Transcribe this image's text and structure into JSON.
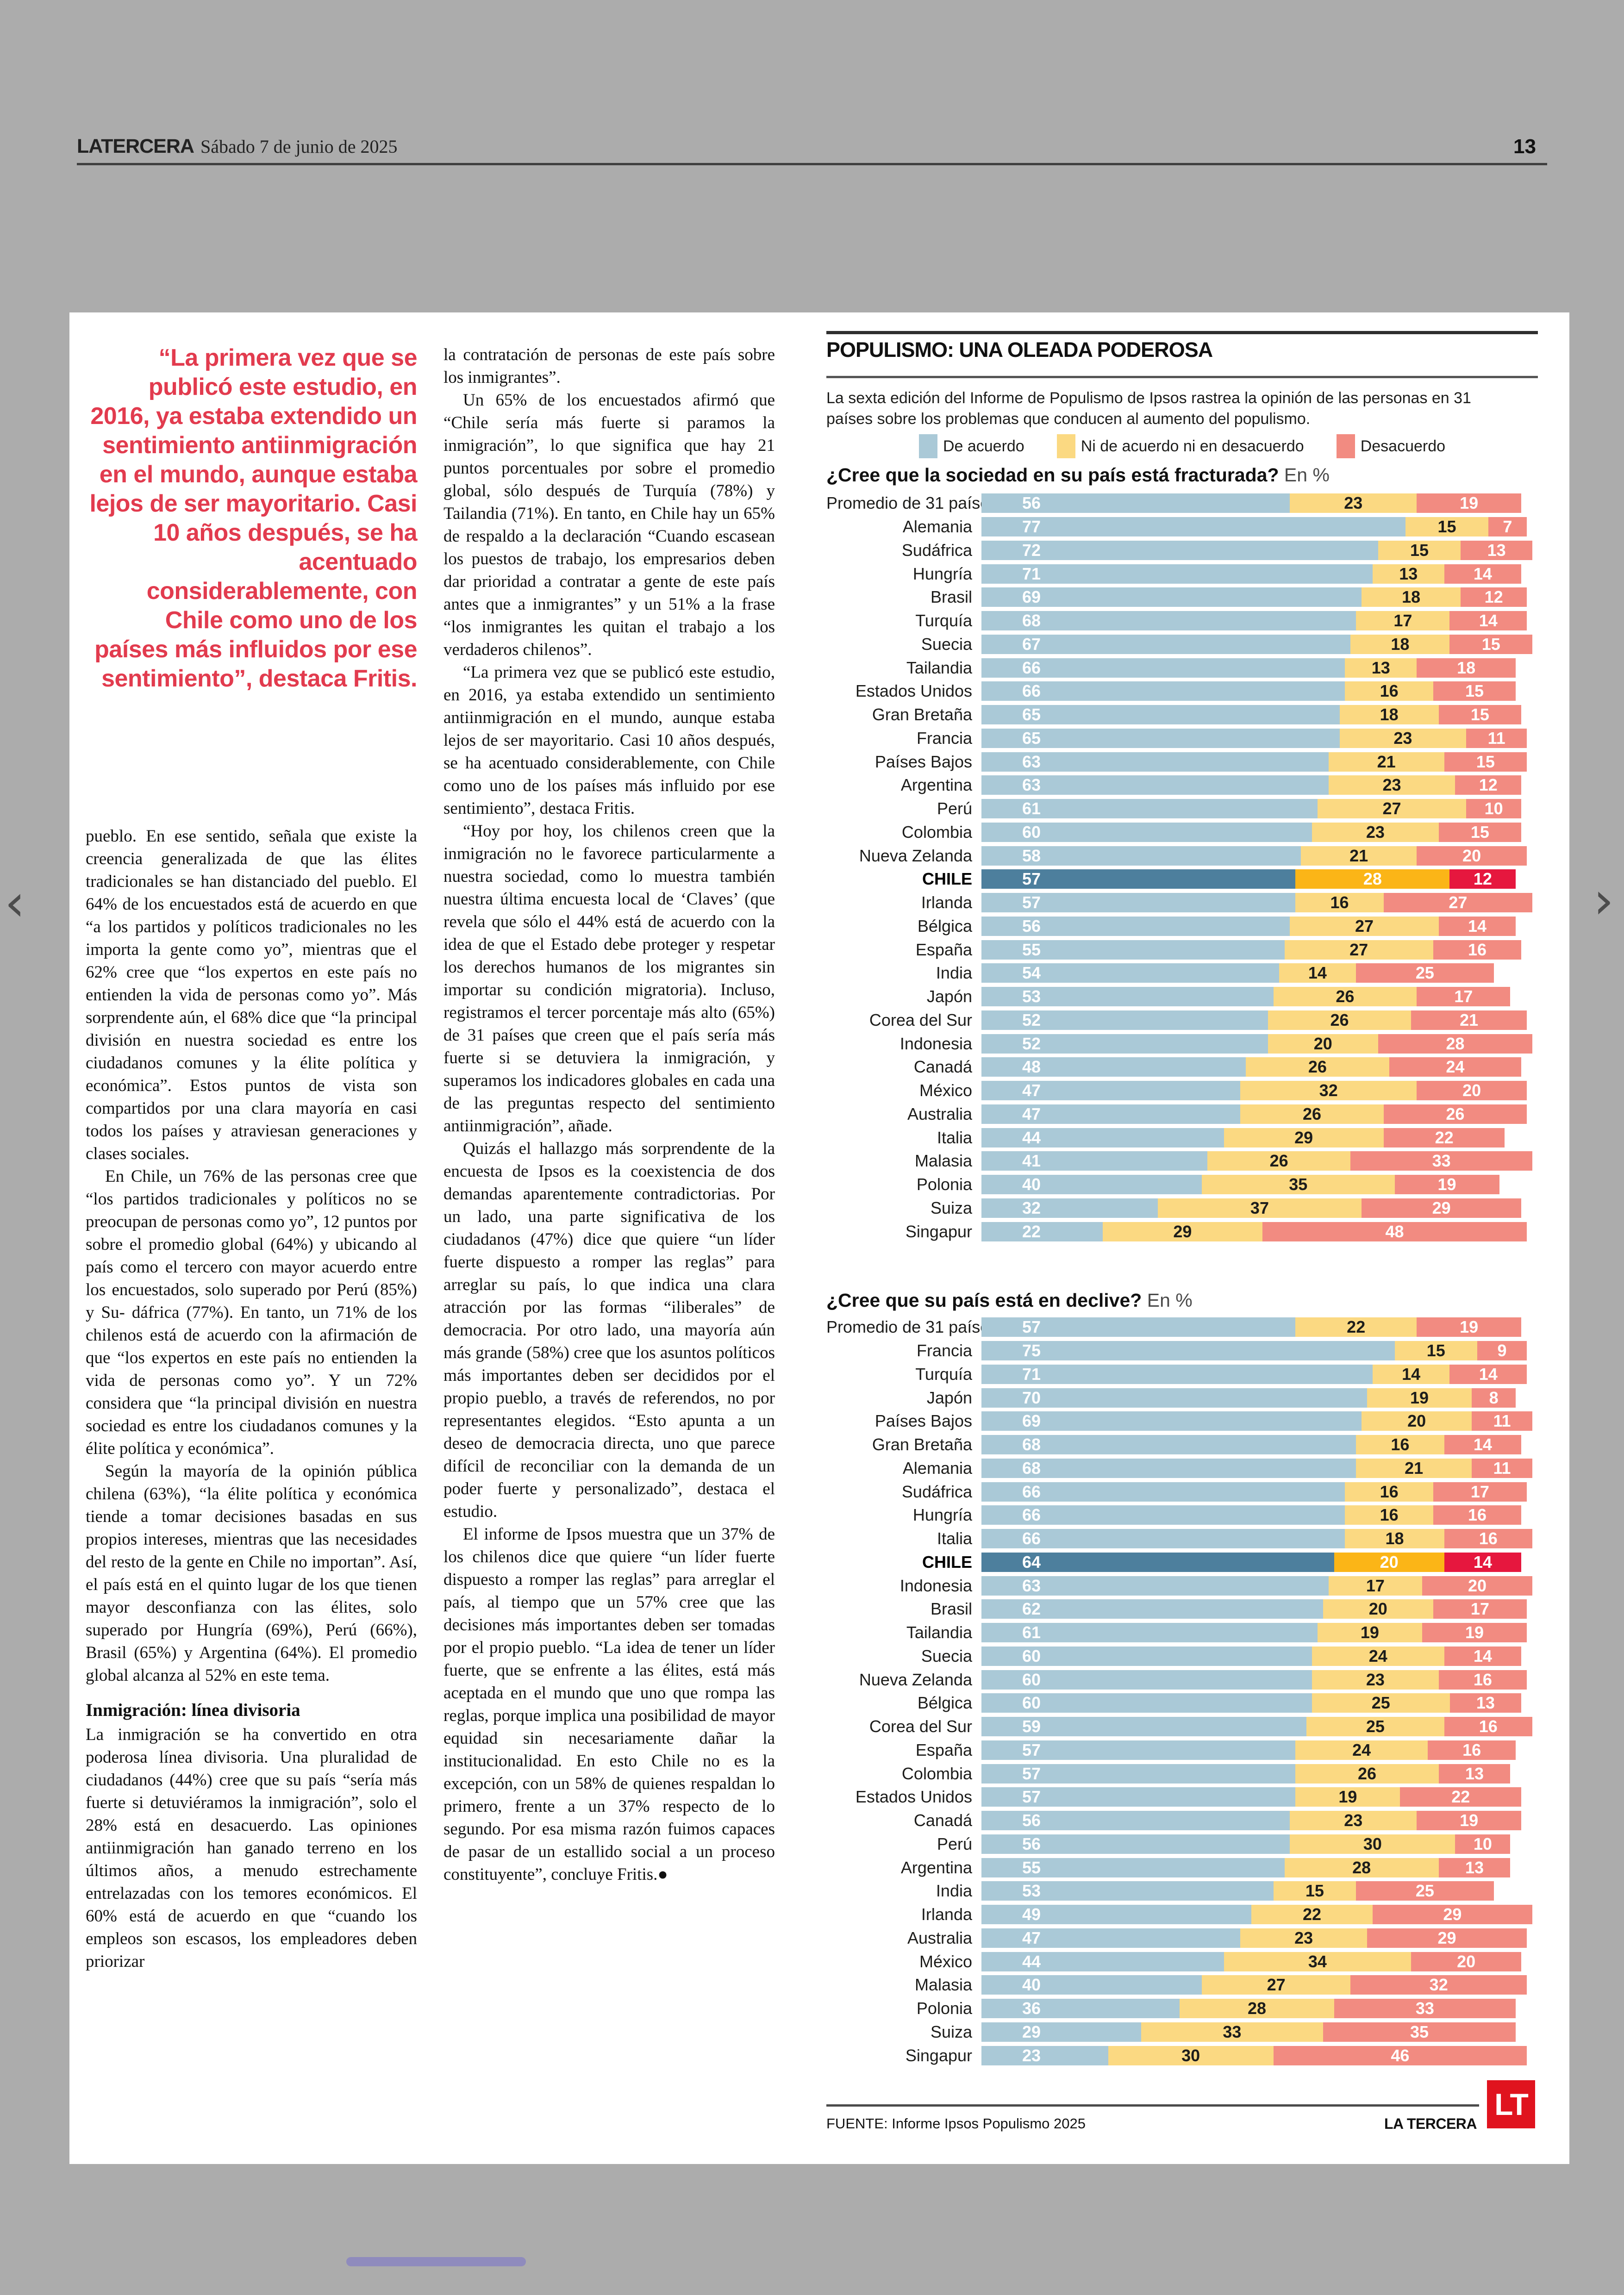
{
  "page": {
    "masthead": "LATERCERA",
    "date": "Sábado 7 de junio de 2025",
    "page_number": "13",
    "prev_arrow": "‹",
    "next_arrow": "›",
    "progress_bar_color": "#8f8bbd"
  },
  "pull_quote": {
    "text": "“La primera vez que se publicó este estudio, en 2016, ya estaba extendido un sentimiento antiinmigración en el mundo, aunque estaba lejos de ser mayoritario. Casi 10 años después, se ha acentuado considerablemente, con Chile como uno de los países más influidos por ese sentimiento”, destaca Fritis.",
    "color": "#e23b4e"
  },
  "article": {
    "column1_blocks": [
      {
        "type": "p",
        "text": "pueblo. En ese sentido, señala que existe la creencia generalizada de que las élites tradicionales se han distanciado del pueblo. El 64% de los encuestados está de acuerdo en que “a los partidos y políticos tradicionales no les importa la gente como yo”, mientras que el 62% cree que “los expertos en este país no entienden la vida de personas como yo”. Más sorprendente aún, el 68% dice que “la principal división en nuestra sociedad es entre los ciudadanos comunes y la élite política y económica”. Estos puntos de vista son compartidos por una clara mayoría en casi todos los países y atraviesan generaciones y clases sociales."
      },
      {
        "type": "p",
        "text": "En Chile, un 76% de las personas cree que “los partidos tradicionales y políticos no se preocupan de personas como yo”, 12 puntos por sobre el promedio global (64%) y ubicando al país como el tercero con mayor acuerdo entre los encuestados, solo superado por Perú (85%) y Su- dáfrica (77%). En tanto, un 71% de los chilenos está de acuerdo con la afirmación de que “los expertos en este país no entienden la vida de personas como yo”. Y un 72% considera que “la principal división en nuestra sociedad es entre los ciudadanos comunes y la élite política y económica”."
      },
      {
        "type": "p",
        "text": "Según la mayoría de la opinión pública chilena (63%), “la élite política y económica tiende a tomar decisiones basadas en sus propios intereses, mientras que las necesidades del resto de la gente en Chile no importan”. Así, el país está en el quinto lugar de los que tienen mayor desconfianza con las élites, solo superado por Hungría (69%), Perú (66%), Brasil (65%) y Argentina (64%). El promedio global alcanza al 52% en este tema."
      },
      {
        "type": "h",
        "text": "Inmigración: línea divisoria"
      },
      {
        "type": "p",
        "text": "La inmigración se ha convertido en otra poderosa línea divisoria. Una pluralidad de ciudadanos (44%) cree que su país “sería más fuerte si detuviéramos la inmigración”, solo el 28% está en desacuerdo. Las opiniones antiinmigración han ganado terreno en los últimos años, a menudo estrechamente entrelazadas con los temores económicos. El 60% está de acuerdo en que “cuando los empleos son escasos, los empleadores deben priorizar"
      }
    ],
    "column2_blocks": [
      {
        "type": "p",
        "text": "la contratación de personas de este país sobre los inmigrantes”."
      },
      {
        "type": "p",
        "text": "Un 65% de los encuestados afirmó que “Chile sería más fuerte si paramos la inmigración”, lo que significa que hay 21 puntos porcentuales por sobre el promedio global, sólo después de Turquía (78%) y Tailandia (71%). En tanto, en Chile hay un 65% de respaldo a la declaración “Cuando escasean los puestos de trabajo, los empresarios deben dar prioridad a contratar a gente de este país antes que a inmigrantes” y un 51% a la frase “los inmigrantes les quitan el trabajo a los verdaderos chilenos”."
      },
      {
        "type": "p",
        "text": "“La primera vez que se publicó este estudio, en 2016, ya estaba extendido un sentimiento antiinmigración en el mundo, aunque estaba lejos de ser mayoritario. Casi 10 años después, se ha acentuado considerablemente, con Chile como uno de los países más influido por ese sentimiento”, destaca Fritis."
      },
      {
        "type": "p",
        "text": "“Hoy por hoy, los chilenos creen que la inmigración no le favorece particularmente a nuestra sociedad, como lo muestra también nuestra última encuesta local de ‘Claves’ (que revela que sólo el 44% está de acuerdo con la idea de que el Estado debe proteger y respetar los derechos humanos de los migrantes sin importar su condición migratoria). Incluso, registramos el tercer porcentaje más alto (65%) de 31 países que creen que el país sería más fuerte si se detuviera la inmigración, y superamos los indicadores globales en cada una de las preguntas respecto del sentimiento antiinmigración”, añade."
      },
      {
        "type": "p",
        "text": "Quizás el hallazgo más sorprendente de la encuesta de Ipsos es la coexistencia de dos demandas aparentemente contradictorias. Por un lado, una parte significativa de los ciudadanos (47%) dice que quiere “un líder fuerte dispuesto a romper las reglas” para arreglar su país, lo que indica una clara atracción por las formas “iliberales” de democracia. Por otro lado, una mayoría aún más grande (58%) cree que los asuntos políticos más importantes deben ser decididos por el propio pueblo, a través de referendos, no por representantes elegidos. “Esto apunta a un deseo de democracia directa, uno que parece difícil de reconciliar con la demanda de un poder fuerte y personalizado”, destaca el estudio."
      },
      {
        "type": "p",
        "text": "El informe de Ipsos muestra que un 37% de los chilenos dice que quiere “un líder fuerte dispuesto a romper las reglas” para arreglar el país, al tiempo que un 57% cree que las decisiones más importantes deben ser tomadas por el propio pueblo. “La idea de tener un líder fuerte, que se enfrente a las élites, está más aceptada en el mundo que uno que rompa las reglas, porque implica una posibilidad de mayor equidad sin necesariamente dañar la institucionalidad. En esto Chile no es la excepción, con un 58% de quienes respaldan lo primero, frente a un 37% respecto de lo segundo. Por esa misma razón fuimos capaces de pasar de un estallido social a un proceso constituyente”, concluye Fritis.●"
      }
    ]
  },
  "infographic": {
    "title": "POPULISMO: UNA OLEADA PODEROSA",
    "subtitle": "La sexta edición del Informe de Populismo de Ipsos rastrea la opinión de las personas en 31 países sobre los problemas que conducen al aumento del populismo.",
    "legend": [
      {
        "label": "De acuerdo",
        "color": "#aac9d7"
      },
      {
        "label": "Ni de acuerdo ni en desacuerdo",
        "color": "#fbd982"
      },
      {
        "label": "Desacuerdo",
        "color": "#f28b81"
      }
    ],
    "series_colors": [
      "#aac9d7",
      "#fbd982",
      "#f28b81"
    ],
    "highlight_colors": [
      "#4d7f9d",
      "#fbb517",
      "#e6173e"
    ],
    "source": "FUENTE: Informe Ipsos Populismo 2025",
    "credit": "LA TERCERA",
    "logo_text": "LT",
    "logo_color": "#e0131e"
  },
  "chart_data": [
    {
      "type": "bar",
      "orientation": "horizontal-stacked",
      "title": "¿Cree que la sociedad en su país está fracturada?",
      "title_suffix": "En %",
      "xlim": [
        0,
        100
      ],
      "highlight_category": "CHILE",
      "categories": [
        "Promedio de 31 países",
        "Alemania",
        "Sudáfrica",
        "Hungría",
        "Brasil",
        "Turquía",
        "Suecia",
        "Tailandia",
        "Estados Unidos",
        "Gran Bretaña",
        "Francia",
        "Países Bajos",
        "Argentina",
        "Perú",
        "Colombia",
        "Nueva Zelanda",
        "CHILE",
        "Irlanda",
        "Bélgica",
        "España",
        "India",
        "Japón",
        "Corea del Sur",
        "Indonesia",
        "Canadá",
        "México",
        "Australia",
        "Italia",
        "Malasia",
        "Polonia",
        "Suiza",
        "Singapur"
      ],
      "series": [
        {
          "name": "De acuerdo",
          "values": [
            56,
            77,
            72,
            71,
            69,
            68,
            67,
            66,
            66,
            65,
            65,
            63,
            63,
            61,
            60,
            58,
            57,
            57,
            56,
            55,
            54,
            53,
            52,
            52,
            48,
            47,
            47,
            44,
            41,
            40,
            32,
            22
          ]
        },
        {
          "name": "Ni de acuerdo ni en desacuerdo",
          "values": [
            23,
            15,
            15,
            13,
            18,
            17,
            18,
            13,
            16,
            18,
            23,
            21,
            23,
            27,
            23,
            21,
            28,
            16,
            27,
            27,
            14,
            26,
            26,
            20,
            26,
            32,
            26,
            29,
            26,
            35,
            37,
            29
          ]
        },
        {
          "name": "Desacuerdo",
          "values": [
            19,
            7,
            13,
            14,
            12,
            14,
            15,
            18,
            15,
            15,
            11,
            15,
            12,
            10,
            15,
            20,
            12,
            27,
            14,
            16,
            25,
            17,
            21,
            28,
            24,
            20,
            26,
            22,
            33,
            19,
            29,
            48
          ]
        }
      ]
    },
    {
      "type": "bar",
      "orientation": "horizontal-stacked",
      "title": "¿Cree que su país está en declive?",
      "title_suffix": "En %",
      "xlim": [
        0,
        100
      ],
      "highlight_category": "CHILE",
      "categories": [
        "Promedio de 31 países",
        "Francia",
        "Turquía",
        "Japón",
        "Países Bajos",
        "Gran Bretaña",
        "Alemania",
        "Sudáfrica",
        "Hungría",
        "Italia",
        "CHILE",
        "Indonesia",
        "Brasil",
        "Tailandia",
        "Suecia",
        "Nueva Zelanda",
        "Bélgica",
        "Corea del Sur",
        "España",
        "Colombia",
        "Estados Unidos",
        "Canadá",
        "Perú",
        "Argentina",
        "India",
        "Irlanda",
        "Australia",
        "México",
        "Malasia",
        "Polonia",
        "Suiza",
        "Singapur"
      ],
      "series": [
        {
          "name": "De acuerdo",
          "values": [
            57,
            75,
            71,
            70,
            69,
            68,
            68,
            66,
            66,
            66,
            64,
            63,
            62,
            61,
            60,
            60,
            60,
            59,
            57,
            57,
            57,
            56,
            56,
            55,
            53,
            49,
            47,
            44,
            40,
            36,
            29,
            23
          ]
        },
        {
          "name": "Ni de acuerdo ni en desacuerdo",
          "values": [
            22,
            15,
            14,
            19,
            20,
            16,
            21,
            16,
            16,
            18,
            20,
            17,
            20,
            19,
            24,
            23,
            25,
            25,
            24,
            26,
            19,
            23,
            30,
            28,
            15,
            22,
            23,
            34,
            27,
            28,
            33,
            30
          ]
        },
        {
          "name": "Desacuerdo",
          "values": [
            19,
            9,
            14,
            8,
            11,
            14,
            11,
            17,
            16,
            16,
            14,
            20,
            17,
            19,
            14,
            16,
            13,
            16,
            16,
            13,
            22,
            19,
            10,
            13,
            25,
            29,
            29,
            20,
            32,
            33,
            35,
            46
          ]
        }
      ]
    }
  ]
}
